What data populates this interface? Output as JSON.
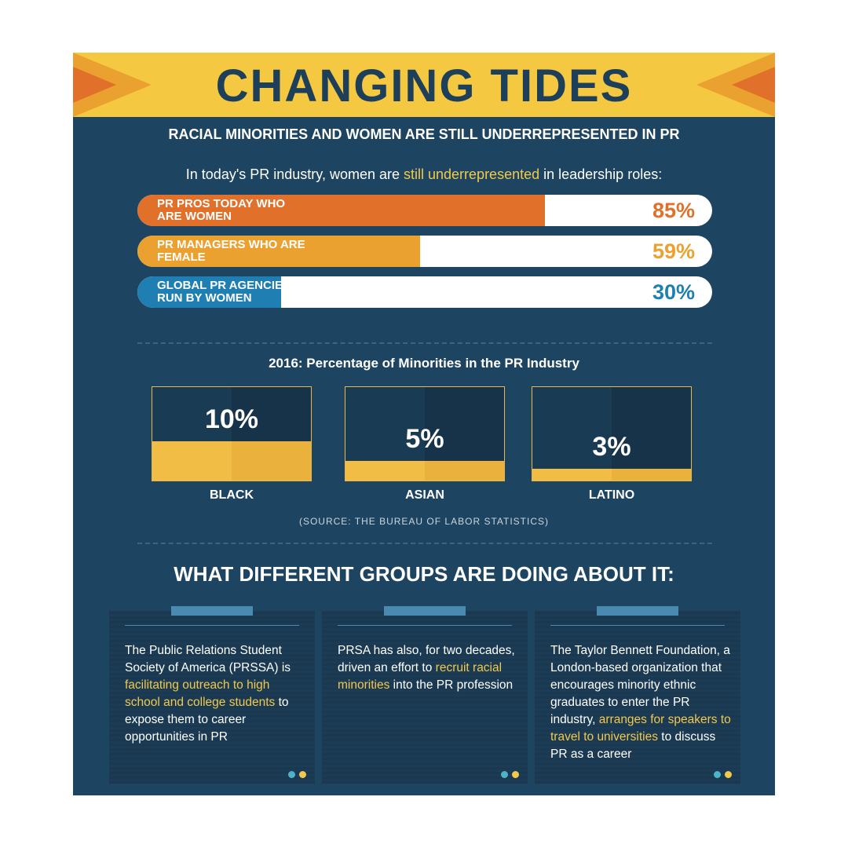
{
  "header": {
    "title": "CHANGING TIDES",
    "subtitle": "RACIAL MINORITIES AND WOMEN ARE STILL UNDERREPRESENTED IN PR"
  },
  "chart_data": [
    {
      "type": "hbar",
      "title_parts": [
        "In today's PR industry, women are ",
        "still underrepresented",
        " in leadership roles:"
      ],
      "categories": [
        "PR PROS TODAY WHO ARE WOMEN",
        "PR MANAGERS WHO ARE FEMALE",
        "GLOBAL PR AGENCIES RUN BY WOMEN"
      ],
      "values": [
        85,
        59,
        30
      ],
      "value_labels": [
        "85%",
        "59%",
        "30%"
      ],
      "colors": [
        "#e0702a",
        "#eba12f",
        "#1f7fb3"
      ],
      "xlim": [
        0,
        120
      ]
    },
    {
      "type": "box",
      "title": "2016: Percentage of Minorities in the PR Industry",
      "categories": [
        "BLACK",
        "ASIAN",
        "LATINO"
      ],
      "values": [
        10,
        5,
        3
      ],
      "value_labels": [
        "10%",
        "5%",
        "3%"
      ],
      "color": "#f2bd45",
      "ylim": [
        0,
        24
      ],
      "source": "(SOURCE: THE BUREAU OF LABOR STATISTICS)"
    }
  ],
  "actions": {
    "title": "WHAT DIFFERENT GROUPS ARE DOING ABOUT IT:",
    "cards": [
      {
        "text": [
          "The Public Relations Student Society of America (PRSSA) is ",
          "facilitating outreach to high school and college students",
          " to expose them to career opportunities in PR"
        ]
      },
      {
        "text": [
          "PRSA has also, for two decades, driven an effort to ",
          "recruit racial minorities",
          " into the PR profession"
        ]
      },
      {
        "text": [
          "The Taylor Bennett Foundation, a London-based organization that encourages minority ethnic graduates to enter the PR industry, ",
          "arranges for speakers to travel to universities",
          " to discuss PR as a career"
        ]
      }
    ]
  }
}
